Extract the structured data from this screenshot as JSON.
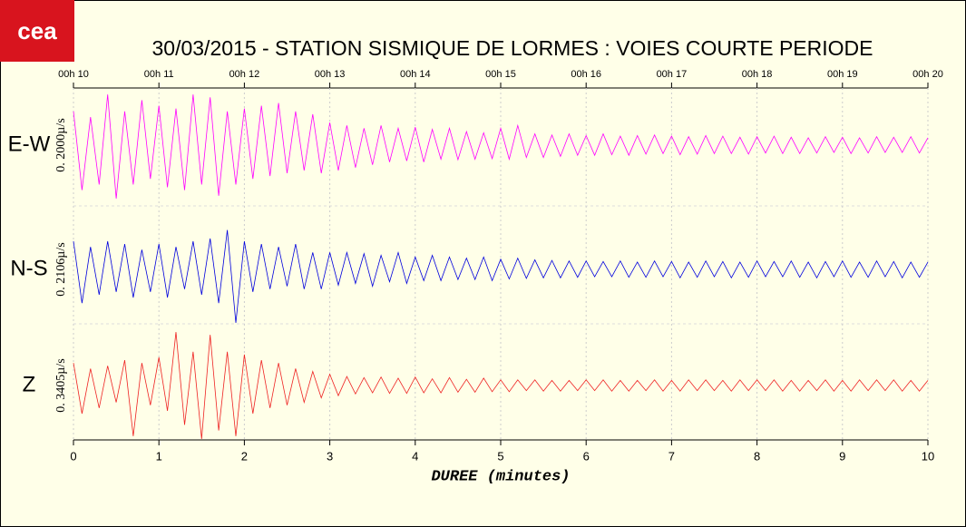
{
  "logo": "cea",
  "chart_data": {
    "type": "seismogram",
    "title": "30/03/2015  -  STATION SISMIQUE DE LORMES : VOIES COURTE PERIODE",
    "xlabel": "DUREE (minutes)",
    "xlim": [
      0,
      10
    ],
    "xticks": [
      0,
      1,
      2,
      3,
      4,
      5,
      6,
      7,
      8,
      9,
      10
    ],
    "x2ticks": [
      {
        "value": 0,
        "label": "00h 10"
      },
      {
        "value": 1,
        "label": "00h 11"
      },
      {
        "value": 2,
        "label": "00h 12"
      },
      {
        "value": 3,
        "label": "00h 13"
      },
      {
        "value": 4,
        "label": "00h 14"
      },
      {
        "value": 5,
        "label": "00h 15"
      },
      {
        "value": 6,
        "label": "00h 16"
      },
      {
        "value": 7,
        "label": "00h 17"
      },
      {
        "value": 8,
        "label": "00h 18"
      },
      {
        "value": 9,
        "label": "00h 19"
      },
      {
        "value": 10,
        "label": "00h 20"
      }
    ],
    "ylim": [
      -1,
      1
    ],
    "grid": true,
    "x": [
      0,
      0.1,
      0.2,
      0.3,
      0.4,
      0.5,
      0.6,
      0.7,
      0.8,
      0.9,
      1,
      1.1,
      1.2,
      1.3,
      1.4,
      1.5,
      1.6,
      1.7,
      1.8,
      1.9,
      2,
      2.1,
      2.2,
      2.3,
      2.4,
      2.5,
      2.6,
      2.7,
      2.8,
      2.9,
      3,
      3.1,
      3.2,
      3.3,
      3.4,
      3.5,
      3.6,
      3.7,
      3.8,
      3.9,
      4,
      4.1,
      4.2,
      4.3,
      4.4,
      4.5,
      4.6,
      4.7,
      4.8,
      4.9,
      5,
      5.1,
      5.2,
      5.3,
      5.4,
      5.5,
      5.6,
      5.7,
      5.8,
      5.9,
      6,
      6.1,
      6.2,
      6.3,
      6.4,
      6.5,
      6.6,
      6.7,
      6.8,
      6.9,
      7,
      7.1,
      7.2,
      7.3,
      7.4,
      7.5,
      7.6,
      7.7,
      7.8,
      7.9,
      8,
      8.1,
      8.2,
      8.3,
      8.4,
      8.5,
      8.6,
      8.7,
      8.8,
      8.9,
      9,
      9.1,
      9.2,
      9.3,
      9.4,
      9.5,
      9.6,
      9.7,
      9.8,
      9.9,
      10
    ],
    "series": [
      {
        "name": "E-W",
        "scale": "0. 2000µ/s",
        "color": "#ff00ff",
        "values": [
          0.6,
          -0.8,
          0.5,
          -0.7,
          0.9,
          -0.95,
          0.6,
          -0.7,
          0.8,
          -0.6,
          0.7,
          -0.75,
          0.65,
          -0.8,
          0.9,
          -0.7,
          0.85,
          -0.9,
          0.6,
          -0.7,
          0.65,
          -0.6,
          0.7,
          -0.55,
          0.75,
          -0.5,
          0.6,
          -0.45,
          0.55,
          -0.5,
          0.4,
          -0.45,
          0.35,
          -0.4,
          0.3,
          -0.35,
          0.35,
          -0.3,
          0.3,
          -0.28,
          0.32,
          -0.3,
          0.28,
          -0.25,
          0.3,
          -0.26,
          0.24,
          -0.25,
          0.22,
          -0.24,
          0.3,
          -0.25,
          0.35,
          -0.22,
          0.2,
          -0.22,
          0.18,
          -0.2,
          0.2,
          -0.18,
          0.17,
          -0.18,
          0.2,
          -0.17,
          0.16,
          -0.18,
          0.17,
          -0.16,
          0.18,
          -0.15,
          0.16,
          -0.17,
          0.15,
          -0.16,
          0.17,
          -0.15,
          0.16,
          -0.15,
          0.14,
          -0.16,
          0.15,
          -0.14,
          0.16,
          -0.15,
          0.14,
          -0.15,
          0.13,
          -0.14,
          0.15,
          -0.13,
          0.14,
          -0.15,
          0.13,
          -0.14,
          0.15,
          -0.13,
          0.14,
          -0.13,
          0.15,
          -0.14,
          0.13
        ]
      },
      {
        "name": "N-S",
        "scale": "0. 2106µ/s",
        "color": "#0000dd",
        "values": [
          0.5,
          -0.6,
          0.4,
          -0.45,
          0.5,
          -0.4,
          0.45,
          -0.5,
          0.35,
          -0.4,
          0.45,
          -0.5,
          0.4,
          -0.35,
          0.5,
          -0.45,
          0.55,
          -0.6,
          0.7,
          -0.95,
          0.5,
          -0.4,
          0.45,
          -0.35,
          0.4,
          -0.3,
          0.45,
          -0.35,
          0.3,
          -0.35,
          0.3,
          -0.28,
          0.3,
          -0.25,
          0.28,
          -0.3,
          0.25,
          -0.22,
          0.3,
          -0.25,
          0.22,
          -0.2,
          0.25,
          -0.2,
          0.22,
          -0.18,
          0.2,
          -0.18,
          0.22,
          -0.2,
          0.18,
          -0.17,
          0.2,
          -0.16,
          0.17,
          -0.15,
          0.16,
          -0.15,
          0.15,
          -0.14,
          0.15,
          -0.13,
          0.14,
          -0.13,
          0.15,
          -0.14,
          0.13,
          -0.14,
          0.15,
          -0.13,
          0.14,
          -0.15,
          0.13,
          -0.14,
          0.15,
          -0.13,
          0.14,
          -0.15,
          0.13,
          -0.14,
          0.15,
          -0.13,
          0.14,
          -0.13,
          0.15,
          -0.14,
          0.13,
          -0.15,
          0.14,
          -0.13,
          0.15,
          -0.14,
          0.13,
          -0.14,
          0.15,
          -0.13,
          0.14,
          -0.15,
          0.13,
          -0.14,
          0.13
        ]
      },
      {
        "name": "Z",
        "scale": "0. 3405µ/s",
        "color": "#ee2222",
        "values": [
          0.4,
          -0.5,
          0.3,
          -0.4,
          0.35,
          -0.3,
          0.45,
          -0.9,
          0.4,
          -0.35,
          0.5,
          -0.45,
          0.95,
          -0.7,
          0.6,
          -0.95,
          0.9,
          -0.8,
          0.6,
          -0.9,
          0.55,
          -0.5,
          0.45,
          -0.4,
          0.4,
          -0.35,
          0.3,
          -0.3,
          0.25,
          -0.22,
          0.2,
          -0.18,
          0.16,
          -0.15,
          0.14,
          -0.13,
          0.15,
          -0.14,
          0.13,
          -0.14,
          0.15,
          -0.13,
          0.12,
          -0.13,
          0.14,
          -0.12,
          0.11,
          -0.12,
          0.13,
          -0.11,
          0.1,
          -0.11,
          0.1,
          -0.09,
          0.1,
          -0.1,
          0.09,
          -0.1,
          0.09,
          -0.09,
          0.1,
          -0.09,
          0.1,
          -0.1,
          0.09,
          -0.1,
          0.09,
          -0.09,
          0.1,
          -0.1,
          0.09,
          -0.1,
          0.1,
          -0.09,
          0.1,
          -0.09,
          0.09,
          -0.1,
          0.1,
          -0.09,
          0.1,
          -0.09,
          0.1,
          -0.1,
          0.09,
          -0.1,
          0.09,
          -0.09,
          0.1,
          -0.1,
          0.09,
          -0.1,
          0.1,
          -0.09,
          0.1,
          -0.09,
          0.1,
          -0.1,
          0.09,
          -0.1,
          0.09
        ]
      }
    ]
  }
}
